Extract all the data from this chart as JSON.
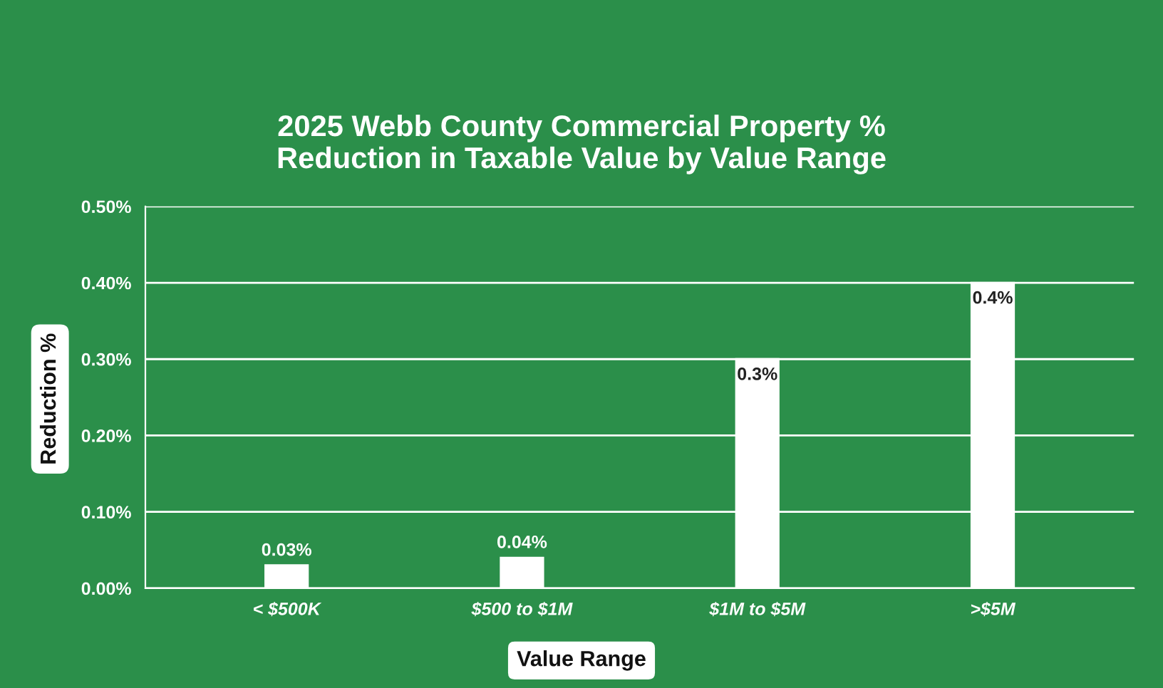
{
  "chart_data": {
    "type": "bar",
    "title": "2025 Webb County Commercial Property %\nReduction in Taxable Value by Value Range",
    "xlabel": "Value Range",
    "ylabel": "Reduction %",
    "categories": [
      "< $500K",
      "$500 to $1M",
      "$1M to $5M",
      ">$5M"
    ],
    "values": [
      0.03,
      0.04,
      0.3,
      0.4
    ],
    "value_labels": [
      "0.03%",
      "0.04%",
      "0.3%",
      "0.4%"
    ],
    "color": "#ffffff",
    "ylim": [
      0,
      0.5
    ],
    "yticks": [
      {
        "value": 0,
        "label": "0.00%"
      },
      {
        "value": 0.1,
        "label": "0.10%"
      },
      {
        "value": 0.2,
        "label": "0.20%"
      },
      {
        "value": 0.3,
        "label": "0.30%"
      },
      {
        "value": 0.4,
        "label": "0.40%"
      },
      {
        "value": 0.5,
        "label": "0.50%"
      }
    ],
    "grid": "y"
  }
}
